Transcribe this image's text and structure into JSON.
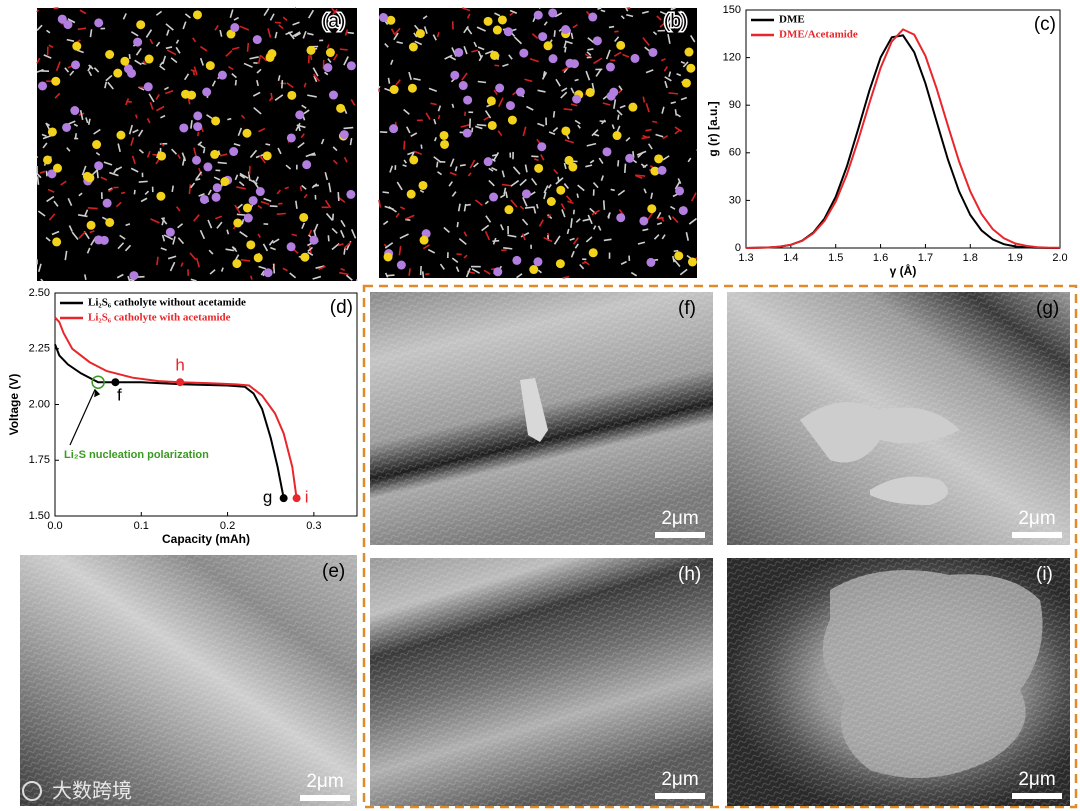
{
  "panel_labels": {
    "a": "(a)",
    "b": "(b)",
    "e": "(e)",
    "f": "(f)",
    "g": "(g)",
    "h": "(h)",
    "i": "(i)"
  },
  "scale_bar": "2μm",
  "watermark": "大数跨境",
  "chart_data": [
    {
      "type": "line",
      "label": "(c)",
      "xlabel": "γ (Å)",
      "ylabel": "g (r) [a.u.]",
      "xlim": [
        1.3,
        2.0
      ],
      "xticks": [
        1.3,
        1.4,
        1.5,
        1.6,
        1.7,
        1.8,
        1.9,
        {
          "value": 2.0,
          "label": "2.0"
        }
      ],
      "ylim": [
        0,
        150
      ],
      "yticks": [
        0,
        30,
        60,
        90,
        120,
        150
      ],
      "x": [
        1.3,
        1.325,
        1.35,
        1.375,
        1.4,
        1.425,
        1.45,
        1.475,
        1.5,
        1.525,
        1.55,
        1.575,
        1.6,
        1.625,
        1.65,
        1.675,
        1.7,
        1.725,
        1.75,
        1.775,
        1.8,
        1.825,
        1.85,
        1.875,
        1.9,
        1.925,
        1.95,
        1.975,
        2.0
      ],
      "series": [
        {
          "name": "DME",
          "color": "#000000",
          "values": [
            0,
            0.1,
            0.3,
            0.8,
            2.0,
            4.6,
            9.7,
            18.5,
            32.3,
            51.4,
            74.8,
            99.2,
            120.1,
            132.8,
            134.0,
            123.4,
            103.8,
            79.7,
            55.8,
            35.7,
            20.8,
            11.1,
            5.4,
            2.4,
            1.0,
            0.4,
            0.1,
            0,
            0
          ]
        },
        {
          "name": "DME/Acetamide",
          "color": "#e8262b",
          "values": [
            0,
            0.1,
            0.3,
            0.9,
            2.1,
            4.5,
            9.2,
            17.1,
            29.3,
            46.4,
            67.8,
            91.3,
            113.5,
            130.2,
            137.8,
            134.5,
            121.1,
            100.6,
            77.1,
            54.5,
            35.6,
            21.4,
            11.9,
            6.1,
            2.9,
            1.3,
            0.5,
            0.2,
            0.1
          ]
        }
      ]
    },
    {
      "type": "line",
      "label": "(d)",
      "xlabel": "Capacity (mAh)",
      "ylabel": "Voltage (V)",
      "xlim": [
        0,
        0.35
      ],
      "xticks": [
        {
          "value": 0,
          "label": "0.0"
        },
        0.1,
        0.2,
        0.3
      ],
      "ylim": [
        1.5,
        2.5
      ],
      "yticks": [
        {
          "value": 1.5,
          "label": "1.50"
        },
        1.75,
        {
          "value": 2.0,
          "label": "2.00"
        },
        2.25,
        {
          "value": 2.5,
          "label": "2.50"
        }
      ],
      "series": [
        {
          "name": "Li₂S₆ catholyte without acetamide",
          "color": "#000000",
          "x": [
            0,
            0.005,
            0.015,
            0.03,
            0.045,
            0.05,
            0.07,
            0.1,
            0.15,
            0.2,
            0.22,
            0.23,
            0.24,
            0.25,
            0.258,
            0.265
          ],
          "values": [
            2.27,
            2.22,
            2.18,
            2.14,
            2.11,
            2.1,
            2.1,
            2.1,
            2.09,
            2.085,
            2.08,
            2.05,
            1.98,
            1.85,
            1.72,
            1.58
          ]
        },
        {
          "name": "Li₂S₆ catholyte with acetamide",
          "color": "#e8262b",
          "x": [
            0,
            0.005,
            0.01,
            0.02,
            0.04,
            0.06,
            0.09,
            0.12,
            0.145,
            0.18,
            0.21,
            0.225,
            0.24,
            0.255,
            0.265,
            0.275,
            0.28
          ],
          "values": [
            2.39,
            2.37,
            2.32,
            2.25,
            2.19,
            2.15,
            2.12,
            2.105,
            2.1,
            2.095,
            2.09,
            2.085,
            2.04,
            1.96,
            1.87,
            1.72,
            1.58
          ]
        }
      ],
      "points": [
        {
          "label": "f",
          "x": 0.07,
          "y": 2.1,
          "color": "#000000"
        },
        {
          "label": "g",
          "x": 0.265,
          "y": 1.58,
          "color": "#000000"
        },
        {
          "label": "h",
          "x": 0.145,
          "y": 2.1,
          "color": "#e8262b"
        },
        {
          "label": "i",
          "x": 0.28,
          "y": 1.58,
          "color": "#e8262b"
        }
      ],
      "annotation": {
        "text": "Li₂S nucleation polarization",
        "x": 0.05,
        "y": 2.1,
        "color": "#3a9a22"
      }
    }
  ]
}
